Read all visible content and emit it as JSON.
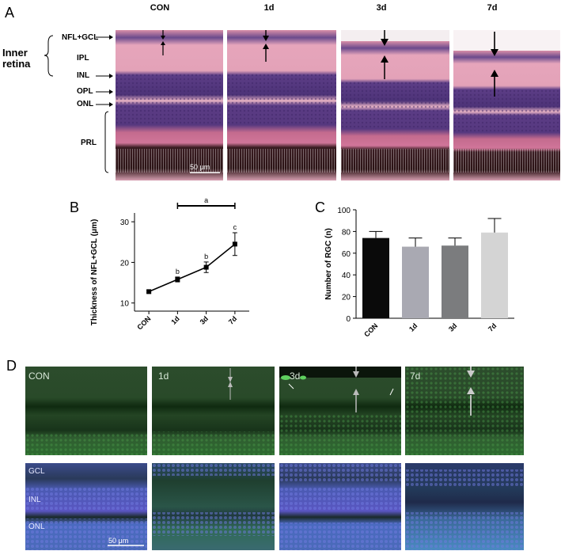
{
  "panel_a": {
    "letter": "A",
    "columns": [
      "CON",
      "1d",
      "3d",
      "7d"
    ],
    "inner_retina_label": [
      "Inner",
      "retina"
    ],
    "layers": [
      "NFL+GCL",
      "IPL",
      "INL",
      "OPL",
      "ONL",
      "PRL"
    ],
    "scale_bar": "50 μm"
  },
  "panel_b": {
    "letter": "B"
  },
  "panel_c": {
    "letter": "C"
  },
  "panel_d": {
    "letter": "D",
    "top_labels": [
      "CON",
      "1d",
      "3d",
      "7d"
    ],
    "bottom_layers": [
      "GCL",
      "INL",
      "ONL"
    ],
    "scale_bar": "50 μm"
  },
  "chart_data": [
    {
      "type": "line",
      "xlabel": "",
      "ylabel": "Thickness of NFL+GCL (μm)",
      "categories": [
        "CON",
        "1d",
        "3d",
        "7d"
      ],
      "values": [
        12.8,
        15.8,
        18.8,
        24.5
      ],
      "errors": [
        0.3,
        0.6,
        1.3,
        2.8
      ],
      "point_labels": [
        "",
        "b",
        "b",
        "c"
      ],
      "bracket_label": "a",
      "yticks": [
        10,
        20,
        30
      ],
      "ylim": [
        8,
        31
      ]
    },
    {
      "type": "bar",
      "xlabel": "",
      "ylabel": "Number of RGC (n)",
      "categories": [
        "CON",
        "1d",
        "3d",
        "7d"
      ],
      "values": [
        74,
        66,
        67,
        79
      ],
      "errors": [
        6,
        8,
        7,
        13
      ],
      "bar_colors": [
        "#0a0a0a",
        "#a9a9b2",
        "#7b7c7e",
        "#d4d4d4"
      ],
      "yticks": [
        0,
        20,
        40,
        60,
        80,
        100
      ],
      "ylim": [
        0,
        100
      ]
    }
  ]
}
